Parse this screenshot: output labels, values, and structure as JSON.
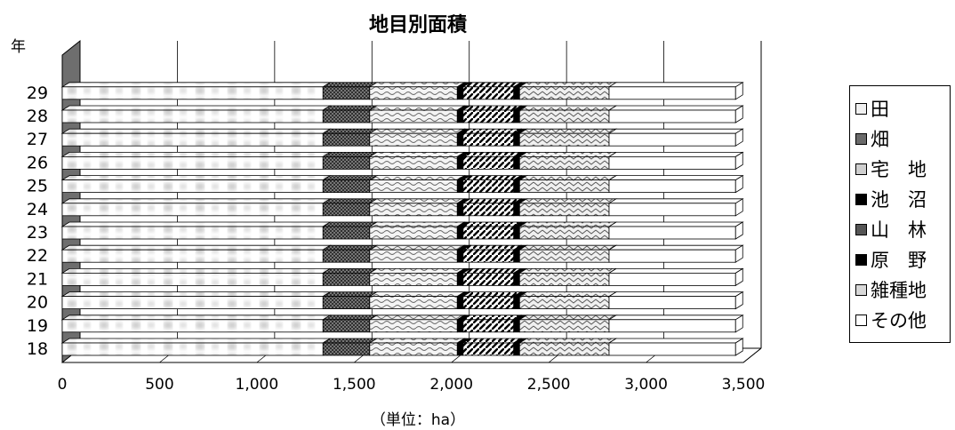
{
  "chart_data": {
    "type": "bar",
    "orientation": "horizontal",
    "stacked": true,
    "title": "地目別面積",
    "y_unit_label": "年",
    "xlabel": "（単位：ha）",
    "xlim": [
      0,
      3500
    ],
    "x_ticks": [
      "0",
      "500",
      "1,000",
      "1,500",
      "2,000",
      "2,500",
      "3,000",
      "3,500"
    ],
    "x_tick_values": [
      0,
      500,
      1000,
      1500,
      2000,
      2500,
      3000,
      3500
    ],
    "categories": [
      "18",
      "19",
      "20",
      "21",
      "22",
      "23",
      "24",
      "25",
      "26",
      "27",
      "28",
      "29"
    ],
    "legend_position": "right",
    "series": [
      {
        "name": "田",
        "color": "#ffffff",
        "pattern": "blur",
        "values": [
          1340,
          1340,
          1340,
          1340,
          1340,
          1340,
          1340,
          1340,
          1340,
          1340,
          1340,
          1340
        ]
      },
      {
        "name": "畑",
        "color": "#707070",
        "pattern": "cross",
        "values": [
          240,
          240,
          240,
          240,
          240,
          240,
          240,
          240,
          240,
          240,
          240,
          240
        ]
      },
      {
        "name": "宅　地",
        "color": "#f2f2f2",
        "pattern": "wave",
        "values": [
          450,
          450,
          450,
          450,
          450,
          450,
          450,
          450,
          450,
          450,
          450,
          450
        ]
      },
      {
        "name": "池　沼",
        "color": "#000000",
        "pattern": "solid",
        "values": [
          30,
          30,
          30,
          30,
          30,
          30,
          30,
          30,
          30,
          30,
          30,
          30
        ]
      },
      {
        "name": "山　林",
        "color": "#ffffff",
        "pattern": "diag",
        "values": [
          260,
          260,
          260,
          260,
          260,
          260,
          260,
          260,
          260,
          260,
          260,
          260
        ]
      },
      {
        "name": "原　野",
        "color": "#000000",
        "pattern": "solid",
        "values": [
          30,
          30,
          30,
          30,
          30,
          30,
          30,
          30,
          30,
          30,
          30,
          30
        ]
      },
      {
        "name": "雑種地",
        "color": "#eeeeee",
        "pattern": "zigzag",
        "values": [
          460,
          460,
          460,
          460,
          460,
          460,
          460,
          460,
          460,
          460,
          460,
          460
        ]
      },
      {
        "name": "その他",
        "color": "#ffffff",
        "pattern": "none",
        "values": [
          650,
          650,
          650,
          650,
          650,
          650,
          650,
          650,
          650,
          650,
          650,
          650
        ]
      }
    ]
  }
}
